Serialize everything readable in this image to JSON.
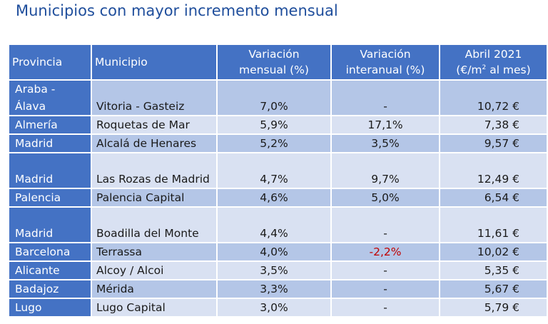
{
  "title": "Municipios con mayor incremento mensual",
  "headers": {
    "provincia": "Provincia",
    "municipio": "Municipio",
    "var_mensual_1": "Variación",
    "var_mensual_2": "mensual (%)",
    "var_interanual_1": "Variación",
    "var_interanual_2": "interanual (%)",
    "abril_1": "Abril 2021",
    "abril_2a": "(€/m",
    "abril_2sup": "2",
    "abril_2b": " al mes)"
  },
  "rows": [
    {
      "provincia": "Araba - Álava",
      "municipio": "Vitoria - Gasteiz",
      "mensual": "7,0%",
      "interanual": "-",
      "precio": "10,72 €"
    },
    {
      "provincia": "Almería",
      "municipio": "Roquetas de Mar",
      "mensual": "5,9%",
      "interanual": "17,1%",
      "precio": "7,38 €"
    },
    {
      "provincia": "Madrid",
      "municipio": "Alcalá de Henares",
      "mensual": "5,2%",
      "interanual": "3,5%",
      "precio": "9,57 €"
    },
    {
      "provincia": "Madrid",
      "municipio": "Las Rozas de Madrid",
      "mensual": "4,7%",
      "interanual": "9,7%",
      "precio": "12,49 €"
    },
    {
      "provincia": "Palencia",
      "municipio": "Palencia Capital",
      "mensual": "4,6%",
      "interanual": "5,0%",
      "precio": "6,54 €"
    },
    {
      "provincia": "Madrid",
      "municipio": "Boadilla del Monte",
      "mensual": "4,4%",
      "interanual": "-",
      "precio": "11,61 €"
    },
    {
      "provincia": "Barcelona",
      "municipio": "Terrassa",
      "mensual": "4,0%",
      "interanual": "-2,2%",
      "precio": "10,02 €"
    },
    {
      "provincia": "Alicante",
      "municipio": "Alcoy / Alcoi",
      "mensual": "3,5%",
      "interanual": "-",
      "precio": "5,35 €"
    },
    {
      "provincia": "Badajoz",
      "municipio": "Mérida",
      "mensual": "3,3%",
      "interanual": "-",
      "precio": "5,67 €"
    },
    {
      "provincia": "Lugo",
      "municipio": "Lugo Capital",
      "mensual": "3,0%",
      "interanual": "-",
      "precio": "5,79 €"
    }
  ],
  "colors": {
    "header_bg": "#4472c4",
    "row_odd": "#b4c6e7",
    "row_even": "#d9e1f2",
    "title": "#1f4e9c",
    "negative": "#c00000"
  }
}
